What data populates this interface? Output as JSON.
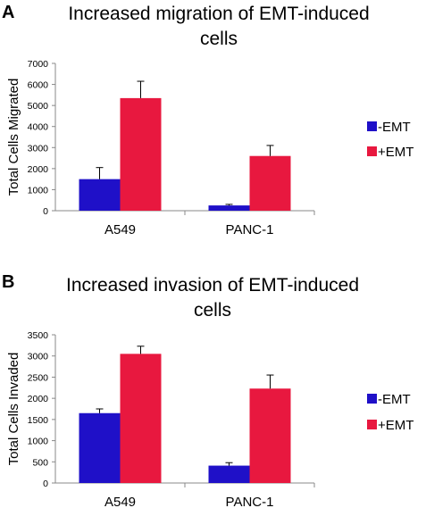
{
  "chart_data": [
    {
      "panel": "A",
      "type": "bar",
      "title": [
        "Increased migration of EMT-induced",
        "cells"
      ],
      "ylabel": "Total Cells Migrated",
      "categories": [
        "A549",
        "PANC-1"
      ],
      "ylim": [
        0,
        7000
      ],
      "yticks": [
        0,
        1000,
        2000,
        3000,
        4000,
        5000,
        6000,
        7000
      ],
      "series": [
        {
          "name": "-EMT",
          "color": "#1f10c8",
          "values": [
            1500,
            250
          ],
          "errors": [
            550,
            50
          ]
        },
        {
          "name": "+EMT",
          "color": "#e8183f",
          "values": [
            5350,
            2600
          ],
          "errors": [
            800,
            500
          ]
        }
      ],
      "legend": "right"
    },
    {
      "panel": "B",
      "type": "bar",
      "title": [
        "Increased invasion of EMT-induced",
        "cells"
      ],
      "ylabel": "Total Cells Invaded",
      "categories": [
        "A549",
        "PANC-1"
      ],
      "ylim": [
        0,
        3500
      ],
      "yticks": [
        0,
        500,
        1000,
        1500,
        2000,
        2500,
        3000,
        3500
      ],
      "series": [
        {
          "name": "-EMT",
          "color": "#1f10c8",
          "values": [
            1650,
            410
          ],
          "errors": [
            100,
            70
          ]
        },
        {
          "name": "+EMT",
          "color": "#e8183f",
          "values": [
            3050,
            2230
          ],
          "errors": [
            180,
            320
          ]
        }
      ],
      "legend": "right"
    }
  ]
}
